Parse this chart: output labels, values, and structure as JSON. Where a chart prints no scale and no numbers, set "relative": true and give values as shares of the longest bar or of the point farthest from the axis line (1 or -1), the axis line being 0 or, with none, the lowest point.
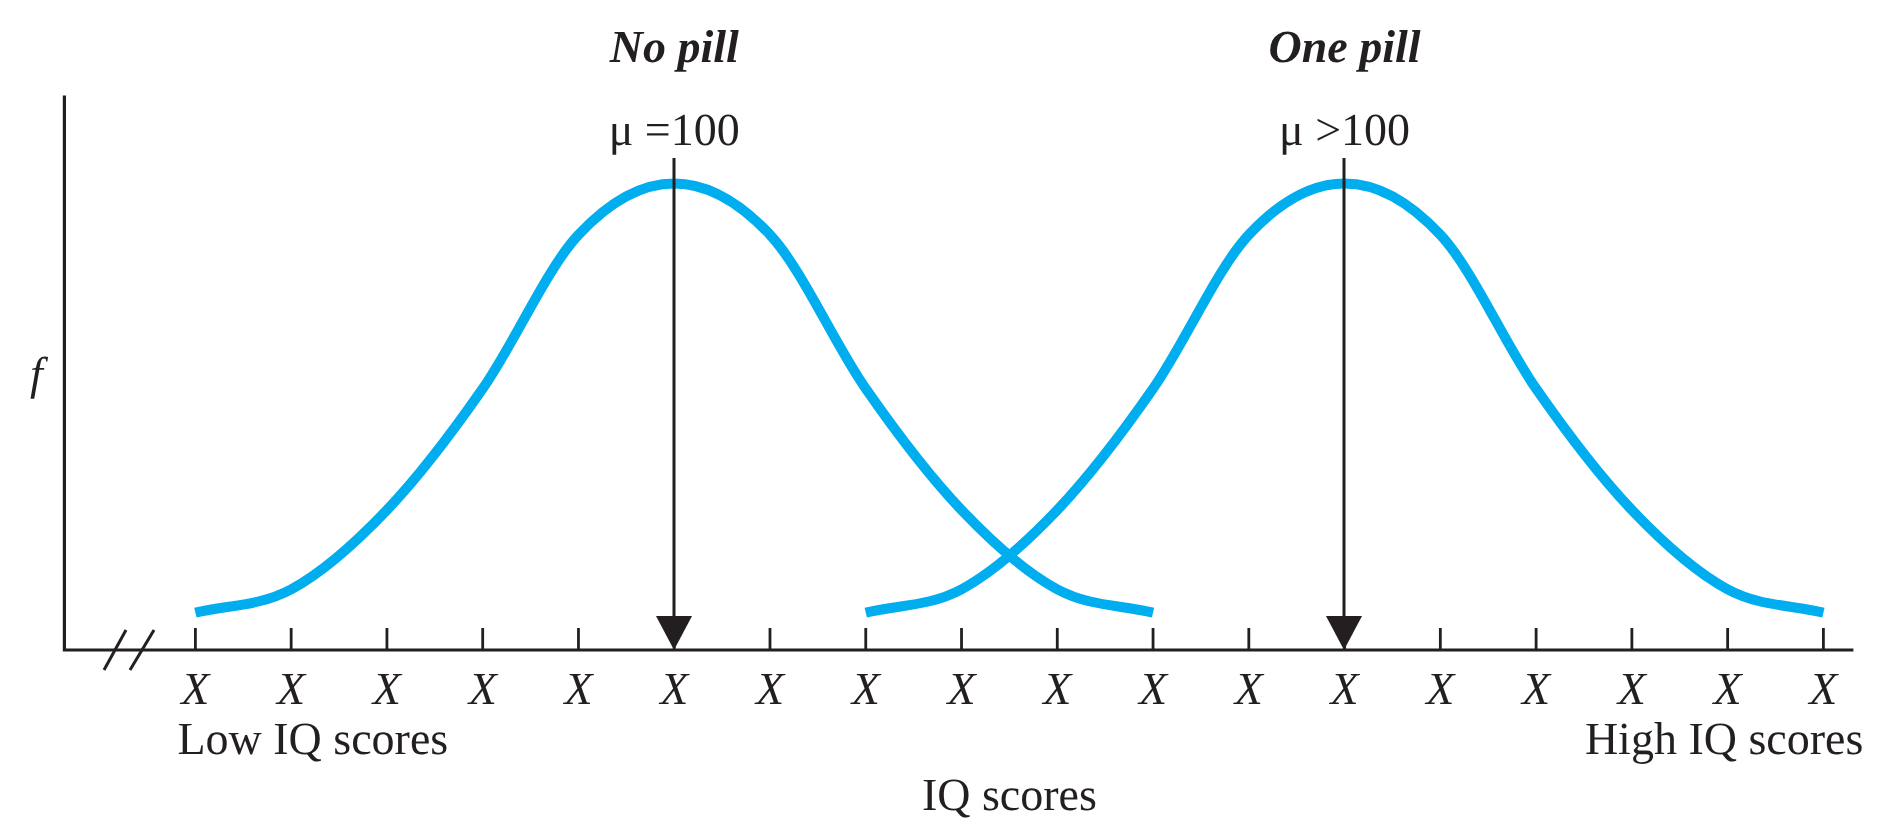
{
  "chart_data": {
    "type": "line",
    "relative": true,
    "xlabel": "IQ scores",
    "ylabel": "f",
    "legend": false,
    "categories": [
      "X",
      "X",
      "X",
      "X",
      "X",
      "X",
      "X",
      "X",
      "X",
      "X",
      "X",
      "X",
      "X",
      "X",
      "X",
      "X",
      "X",
      "X"
    ],
    "series": [
      {
        "name": "No pill",
        "color": "#00aeef",
        "values": [
          0.08,
          0.13,
          0.3,
          0.56,
          0.89,
          1,
          0.89,
          0.56,
          0.3,
          0.13,
          0.08,
          null,
          null,
          null,
          null,
          null,
          null,
          null
        ]
      },
      {
        "name": "One pill",
        "color": "#00aeef",
        "values": [
          null,
          null,
          null,
          null,
          null,
          null,
          null,
          0.08,
          0.13,
          0.3,
          0.56,
          0.89,
          1,
          0.89,
          0.56,
          0.3,
          0.13,
          0.08
        ]
      }
    ],
    "annotations": [
      "μ =100",
      "μ >100",
      "Low IQ scores",
      "High IQ scores"
    ]
  }
}
